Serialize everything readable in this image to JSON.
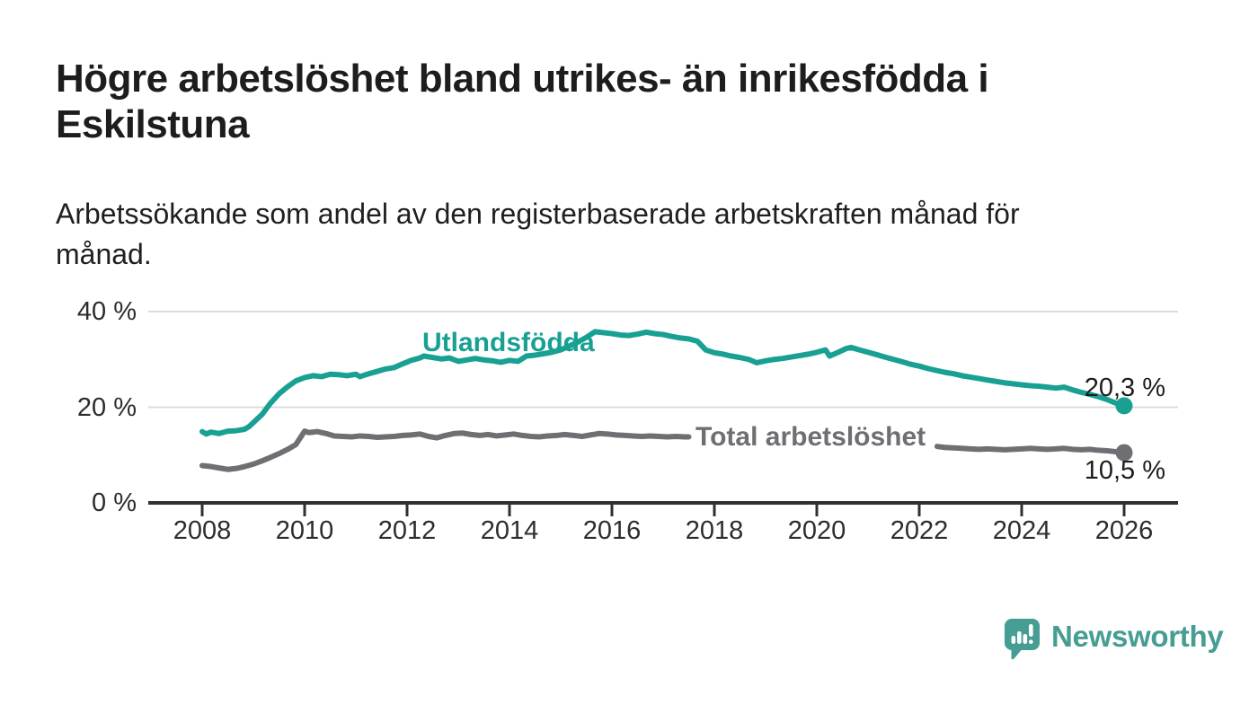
{
  "header": {
    "title_lines": [
      "Högre arbetslöshet bland utrikes- än inrikesfödda i",
      "Eskilstuna"
    ],
    "subtitle_lines": [
      "Arbetssökande som andel av den registerbaserade arbetskraften månad för",
      "månad."
    ]
  },
  "chart_data": {
    "type": "line",
    "title": "Högre arbetslöshet bland utrikes- än inrikesfödda i Eskilstuna",
    "subtitle": "Arbetssökande som andel av den registerbaserade arbetskraften månad för månad.",
    "grid": "horizontal-gridlines-on",
    "legend": "inline-series-labels",
    "x_axis": {
      "range": [
        2006.95,
        2027.05
      ],
      "ticks": [
        2008,
        2010,
        2012,
        2014,
        2016,
        2018,
        2020,
        2022,
        2024,
        2026
      ],
      "tick_labels": [
        "2008",
        "2010",
        "2012",
        "2014",
        "2016",
        "2018",
        "2020",
        "2022",
        "2024",
        "2026"
      ]
    },
    "y_axis": {
      "range": [
        0,
        40
      ],
      "ticks": [
        0,
        20,
        40
      ],
      "tick_labels": [
        "0 %",
        "20 %",
        "40 %"
      ],
      "unit": "%"
    },
    "colors": {
      "utlandsfodda": "#18a092",
      "total": "#6e6e73",
      "gridline": "#dcdcdc",
      "axis": "#303030",
      "text": "#1d1d1b",
      "brand": "#459d93"
    },
    "series": [
      {
        "name": "Utlandsfödda",
        "color": "#18a092",
        "end_value": 20.3,
        "end_value_label": "20,3 %",
        "segments": [
          [
            [
              2008.0,
              14.9
            ],
            [
              2008.08,
              14.4
            ],
            [
              2008.17,
              14.8
            ],
            [
              2008.33,
              14.5
            ],
            [
              2008.5,
              15.0
            ],
            [
              2008.67,
              15.1
            ],
            [
              2008.83,
              15.4
            ],
            [
              2008.92,
              16.0
            ],
            [
              2009.0,
              16.8
            ],
            [
              2009.17,
              18.5
            ],
            [
              2009.33,
              20.8
            ],
            [
              2009.5,
              22.8
            ],
            [
              2009.67,
              24.3
            ],
            [
              2009.83,
              25.5
            ],
            [
              2010.0,
              26.2
            ],
            [
              2010.17,
              26.6
            ],
            [
              2010.33,
              26.4
            ],
            [
              2010.5,
              26.9
            ],
            [
              2010.67,
              26.8
            ],
            [
              2010.83,
              26.6
            ],
            [
              2011.0,
              26.9
            ],
            [
              2011.08,
              26.4
            ],
            [
              2011.25,
              27.0
            ],
            [
              2011.42,
              27.5
            ],
            [
              2011.58,
              28.0
            ],
            [
              2011.75,
              28.3
            ],
            [
              2011.92,
              29.1
            ],
            [
              2012.08,
              29.8
            ],
            [
              2012.25,
              30.3
            ],
            [
              2012.33,
              30.7
            ],
            [
              2012.5,
              30.4
            ],
            [
              2012.67,
              30.1
            ],
            [
              2012.83,
              30.3
            ],
            [
              2013.0,
              29.6
            ],
            [
              2013.17,
              29.9
            ],
            [
              2013.33,
              30.2
            ],
            [
              2013.5,
              29.9
            ],
            [
              2013.67,
              29.7
            ],
            [
              2013.83,
              29.4
            ],
            [
              2014.0,
              29.8
            ],
            [
              2014.17,
              29.6
            ],
            [
              2014.33,
              30.7
            ],
            [
              2014.5,
              30.9
            ],
            [
              2014.67,
              31.2
            ],
            [
              2014.83,
              31.5
            ],
            [
              2015.0,
              32.0
            ],
            [
              2015.17,
              32.8
            ],
            [
              2015.33,
              33.6
            ],
            [
              2015.5,
              34.6
            ],
            [
              2015.67,
              35.8
            ],
            [
              2015.83,
              35.6
            ],
            [
              2016.0,
              35.4
            ],
            [
              2016.17,
              35.1
            ],
            [
              2016.33,
              35.0
            ],
            [
              2016.5,
              35.3
            ],
            [
              2016.67,
              35.7
            ],
            [
              2016.83,
              35.4
            ],
            [
              2017.0,
              35.2
            ],
            [
              2017.17,
              34.8
            ],
            [
              2017.33,
              34.5
            ],
            [
              2017.5,
              34.3
            ],
            [
              2017.67,
              33.8
            ],
            [
              2017.83,
              32.0
            ],
            [
              2018.0,
              31.4
            ],
            [
              2018.17,
              31.1
            ],
            [
              2018.33,
              30.7
            ],
            [
              2018.5,
              30.4
            ],
            [
              2018.67,
              30.0
            ],
            [
              2018.83,
              29.3
            ],
            [
              2019.0,
              29.7
            ],
            [
              2019.17,
              30.0
            ],
            [
              2019.33,
              30.2
            ],
            [
              2019.5,
              30.5
            ],
            [
              2019.67,
              30.8
            ],
            [
              2019.83,
              31.1
            ],
            [
              2020.0,
              31.5
            ],
            [
              2020.17,
              32.0
            ],
            [
              2020.25,
              30.7
            ],
            [
              2020.42,
              31.5
            ],
            [
              2020.58,
              32.3
            ],
            [
              2020.67,
              32.5
            ],
            [
              2020.83,
              32.0
            ],
            [
              2021.0,
              31.5
            ],
            [
              2021.17,
              31.0
            ],
            [
              2021.33,
              30.5
            ],
            [
              2021.5,
              30.0
            ],
            [
              2021.67,
              29.5
            ],
            [
              2021.83,
              29.0
            ],
            [
              2022.0,
              28.6
            ],
            [
              2022.17,
              28.1
            ],
            [
              2022.33,
              27.7
            ],
            [
              2022.5,
              27.3
            ],
            [
              2022.67,
              27.0
            ],
            [
              2022.83,
              26.6
            ],
            [
              2023.0,
              26.3
            ],
            [
              2023.17,
              26.0
            ],
            [
              2023.33,
              25.7
            ],
            [
              2023.5,
              25.4
            ],
            [
              2023.67,
              25.1
            ],
            [
              2023.83,
              24.9
            ],
            [
              2024.0,
              24.7
            ],
            [
              2024.17,
              24.5
            ],
            [
              2024.33,
              24.4
            ],
            [
              2024.5,
              24.2
            ],
            [
              2024.67,
              24.0
            ],
            [
              2024.83,
              24.2
            ],
            [
              2025.0,
              23.6
            ],
            [
              2025.17,
              23.1
            ],
            [
              2025.33,
              22.7
            ],
            [
              2025.5,
              22.2
            ],
            [
              2025.67,
              21.6
            ],
            [
              2025.83,
              20.9
            ],
            [
              2026.0,
              20.3
            ]
          ]
        ]
      },
      {
        "name": "Total arbetslöshet",
        "color": "#6e6e73",
        "end_value": 10.5,
        "end_value_label": "10,5 %",
        "label_gap_years": [
          2017.55,
          2022.3
        ],
        "segments": [
          [
            [
              2008.0,
              7.8
            ],
            [
              2008.17,
              7.6
            ],
            [
              2008.33,
              7.3
            ],
            [
              2008.5,
              7.0
            ],
            [
              2008.67,
              7.2
            ],
            [
              2008.83,
              7.6
            ],
            [
              2009.0,
              8.1
            ],
            [
              2009.17,
              8.8
            ],
            [
              2009.33,
              9.5
            ],
            [
              2009.5,
              10.3
            ],
            [
              2009.67,
              11.2
            ],
            [
              2009.83,
              12.2
            ],
            [
              2010.0,
              15.0
            ],
            [
              2010.08,
              14.7
            ],
            [
              2010.25,
              14.9
            ],
            [
              2010.42,
              14.5
            ],
            [
              2010.58,
              14.0
            ],
            [
              2010.75,
              13.9
            ],
            [
              2010.92,
              13.8
            ],
            [
              2011.08,
              14.0
            ],
            [
              2011.25,
              13.9
            ],
            [
              2011.42,
              13.7
            ],
            [
              2011.58,
              13.8
            ],
            [
              2011.75,
              13.9
            ],
            [
              2011.92,
              14.1
            ],
            [
              2012.08,
              14.2
            ],
            [
              2012.25,
              14.4
            ],
            [
              2012.42,
              13.9
            ],
            [
              2012.58,
              13.6
            ],
            [
              2012.75,
              14.1
            ],
            [
              2012.92,
              14.5
            ],
            [
              2013.08,
              14.6
            ],
            [
              2013.25,
              14.3
            ],
            [
              2013.42,
              14.1
            ],
            [
              2013.58,
              14.3
            ],
            [
              2013.75,
              14.0
            ],
            [
              2013.92,
              14.2
            ],
            [
              2014.08,
              14.4
            ],
            [
              2014.25,
              14.1
            ],
            [
              2014.42,
              13.9
            ],
            [
              2014.58,
              13.8
            ],
            [
              2014.75,
              14.0
            ],
            [
              2014.92,
              14.1
            ],
            [
              2015.08,
              14.3
            ],
            [
              2015.25,
              14.1
            ],
            [
              2015.42,
              13.9
            ],
            [
              2015.58,
              14.2
            ],
            [
              2015.75,
              14.5
            ],
            [
              2015.92,
              14.4
            ],
            [
              2016.08,
              14.2
            ],
            [
              2016.25,
              14.1
            ],
            [
              2016.42,
              14.0
            ],
            [
              2016.58,
              13.9
            ],
            [
              2016.75,
              14.0
            ],
            [
              2016.92,
              13.9
            ],
            [
              2017.08,
              13.8
            ],
            [
              2017.25,
              13.9
            ],
            [
              2017.42,
              13.8
            ],
            [
              2017.5,
              13.8
            ]
          ],
          [
            [
              2022.35,
              11.8
            ],
            [
              2022.5,
              11.6
            ],
            [
              2022.67,
              11.5
            ],
            [
              2022.83,
              11.4
            ],
            [
              2023.0,
              11.3
            ],
            [
              2023.17,
              11.2
            ],
            [
              2023.33,
              11.3
            ],
            [
              2023.5,
              11.2
            ],
            [
              2023.67,
              11.1
            ],
            [
              2023.83,
              11.2
            ],
            [
              2024.0,
              11.3
            ],
            [
              2024.17,
              11.4
            ],
            [
              2024.33,
              11.3
            ],
            [
              2024.5,
              11.2
            ],
            [
              2024.67,
              11.3
            ],
            [
              2024.83,
              11.4
            ],
            [
              2025.0,
              11.2
            ],
            [
              2025.17,
              11.1
            ],
            [
              2025.33,
              11.2
            ],
            [
              2025.5,
              11.0
            ],
            [
              2025.67,
              10.9
            ],
            [
              2025.83,
              10.7
            ],
            [
              2026.0,
              10.5
            ]
          ]
        ]
      }
    ]
  },
  "footer": {
    "brand": "Newsworthy"
  }
}
